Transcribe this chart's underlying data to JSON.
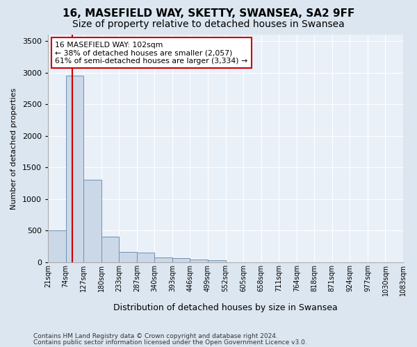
{
  "title": "16, MASEFIELD WAY, SKETTY, SWANSEA, SA2 9FF",
  "subtitle": "Size of property relative to detached houses in Swansea",
  "xlabel": "Distribution of detached houses by size in Swansea",
  "ylabel": "Number of detached properties",
  "footer_line1": "Contains HM Land Registry data © Crown copyright and database right 2024.",
  "footer_line2": "Contains public sector information licensed under the Open Government Licence v3.0.",
  "bin_labels": [
    "21sqm",
    "74sqm",
    "127sqm",
    "180sqm",
    "233sqm",
    "287sqm",
    "340sqm",
    "393sqm",
    "446sqm",
    "499sqm",
    "552sqm",
    "605sqm",
    "658sqm",
    "711sqm",
    "764sqm",
    "818sqm",
    "871sqm",
    "924sqm",
    "977sqm",
    "1030sqm",
    "1083sqm"
  ],
  "bar_heights": [
    500,
    2950,
    1300,
    400,
    160,
    155,
    75,
    60,
    45,
    35,
    0,
    0,
    0,
    0,
    0,
    0,
    0,
    0,
    0,
    0
  ],
  "bar_color": "#cad8e8",
  "bar_edge_color": "#7090b0",
  "vline_x": 1.38,
  "vline_color": "#cc0000",
  "annotation_text": "16 MASEFIELD WAY: 102sqm\n← 38% of detached houses are smaller (2,057)\n61% of semi-detached houses are larger (3,334) →",
  "annotation_box_facecolor": "#ffffff",
  "annotation_box_edgecolor": "#cc0000",
  "ylim": [
    0,
    3600
  ],
  "yticks": [
    0,
    500,
    1000,
    1500,
    2000,
    2500,
    3000,
    3500
  ],
  "bg_color": "#dce6f0",
  "plot_bg_color": "#eaf0f8",
  "title_fontsize": 11,
  "subtitle_fontsize": 10,
  "ylabel_fontsize": 8,
  "xlabel_fontsize": 9,
  "tick_fontsize": 8,
  "xtick_fontsize": 7,
  "footer_fontsize": 6.5
}
